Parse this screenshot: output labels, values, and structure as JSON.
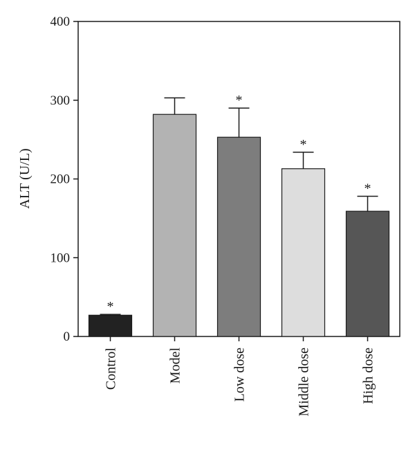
{
  "chart_data": {
    "type": "bar",
    "title": "",
    "xlabel": "",
    "ylabel": "ALT (U/L)",
    "ylim": [
      0,
      400
    ],
    "yticks": [
      0,
      100,
      200,
      300,
      400
    ],
    "grid": false,
    "categories": [
      "Control",
      "Model",
      "Low dose",
      "Middle dose",
      "High dose"
    ],
    "values": [
      27,
      282,
      253,
      213,
      159
    ],
    "errors": [
      1,
      21,
      37,
      21,
      19
    ],
    "bar_colors": [
      "#222222",
      "#b3b3b3",
      "#7d7d7d",
      "#dddddd",
      "#565656"
    ],
    "significance": [
      "*",
      "",
      "*",
      "*",
      "*"
    ]
  }
}
